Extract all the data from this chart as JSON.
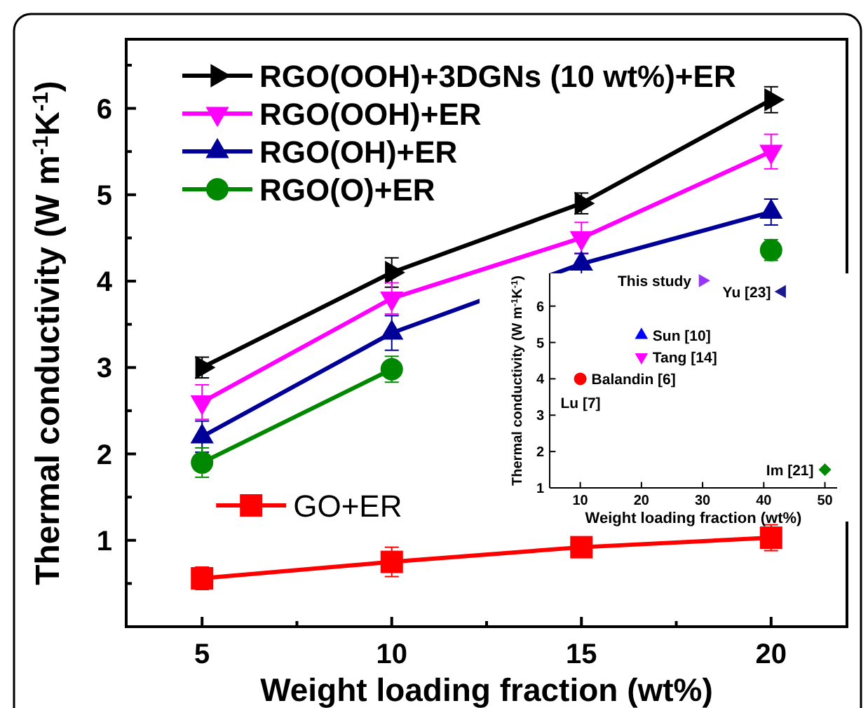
{
  "chart_data": [
    {
      "type": "line",
      "xlabel": "Weight loading fraction (wt%)",
      "ylabel": "Thermal conductivity (W m$^{-1}$K$^{-1}$)",
      "x": [
        5,
        10,
        15,
        20
      ],
      "xlim": [
        3,
        22
      ],
      "xticks": [
        5,
        {
          "value": 7.5,
          "label": null
        },
        10,
        {
          "value": 12.5,
          "label": null
        },
        15,
        {
          "value": 17.5,
          "label": null
        },
        20
      ],
      "ylim": [
        0,
        6.8
      ],
      "yticks": [
        {
          "value": 0.5,
          "label": null
        },
        1,
        {
          "value": 1.5,
          "label": null
        },
        2,
        {
          "value": 2.5,
          "label": null
        },
        3,
        {
          "value": 3.5,
          "label": null
        },
        4,
        {
          "value": 4.5,
          "label": null
        },
        5,
        {
          "value": 5.5,
          "label": null
        },
        6,
        {
          "value": 6.5,
          "label": null
        }
      ],
      "legend": "top left",
      "grid": false,
      "line_style": "solid",
      "series": [
        {
          "name": "RGO(OOH)+3DGNs (10 wt%)+ER",
          "color": "#000000",
          "marker": "triangle-right",
          "values": [
            3.0,
            4.1,
            4.9,
            6.1
          ],
          "errors": [
            0.12,
            0.17,
            0.12,
            0.15
          ]
        },
        {
          "name": "RGO(OOH)+ER",
          "color": "#ff00ff",
          "marker": "triangle-down",
          "values": [
            2.6,
            3.8,
            4.5,
            5.5
          ],
          "errors": [
            0.2,
            0.18,
            0.18,
            0.2
          ]
        },
        {
          "name": "RGO(OH)+ER",
          "color": "#000099",
          "marker": "triangle",
          "values": [
            2.2,
            3.4,
            4.2,
            4.8
          ],
          "errors": [
            0.18,
            0.2,
            0.12,
            0.15
          ]
        },
        {
          "name": "RGO(O)+ER",
          "color": "#008800",
          "marker": "circle",
          "values": [
            1.9,
            2.98,
            null,
            4.36
          ],
          "errors": [
            0.17,
            0.15,
            null,
            0.12
          ]
        },
        {
          "name": "GO+ER",
          "color": "#ff0000",
          "marker": "square",
          "values": [
            0.56,
            0.75,
            0.92,
            1.03
          ],
          "errors": [
            0.13,
            0.17,
            0.1,
            0.15
          ]
        }
      ]
    },
    {
      "type": "scatter",
      "xlabel": "Weight loading fraction (wt%)",
      "ylabel": "Thermal conductivity (W m$^{-1}$K$^{-1}$)",
      "xlim": [
        5,
        52
      ],
      "xticks": [
        10,
        20,
        30,
        40,
        50
      ],
      "ylim": [
        1,
        6.9
      ],
      "yticks": [
        1,
        2,
        3,
        4,
        5,
        6
      ],
      "grid": false,
      "annotations": [
        "Lu [7]"
      ],
      "series": [
        {
          "name": "This study",
          "color": "#9933ff",
          "marker": "triangle-right",
          "x": [
            30
          ],
          "values": [
            6.7
          ]
        },
        {
          "name": "Yu [23]",
          "color": "#1a1a8c",
          "marker": "triangle-left",
          "x": [
            43
          ],
          "values": [
            6.4
          ]
        },
        {
          "name": "Sun [10]",
          "color": "#0000ff",
          "marker": "triangle",
          "x": [
            20
          ],
          "values": [
            5.2
          ]
        },
        {
          "name": "Tang [14]",
          "color": "#ff00ff",
          "marker": "triangle-down",
          "x": [
            20
          ],
          "values": [
            4.6
          ]
        },
        {
          "name": "Balandin [6]",
          "color": "#ff0000",
          "marker": "circle",
          "x": [
            10
          ],
          "values": [
            4.0
          ]
        },
        {
          "name": "Im [21]",
          "color": "#008800",
          "marker": "diamond",
          "x": [
            50
          ],
          "values": [
            1.5
          ]
        }
      ]
    }
  ]
}
